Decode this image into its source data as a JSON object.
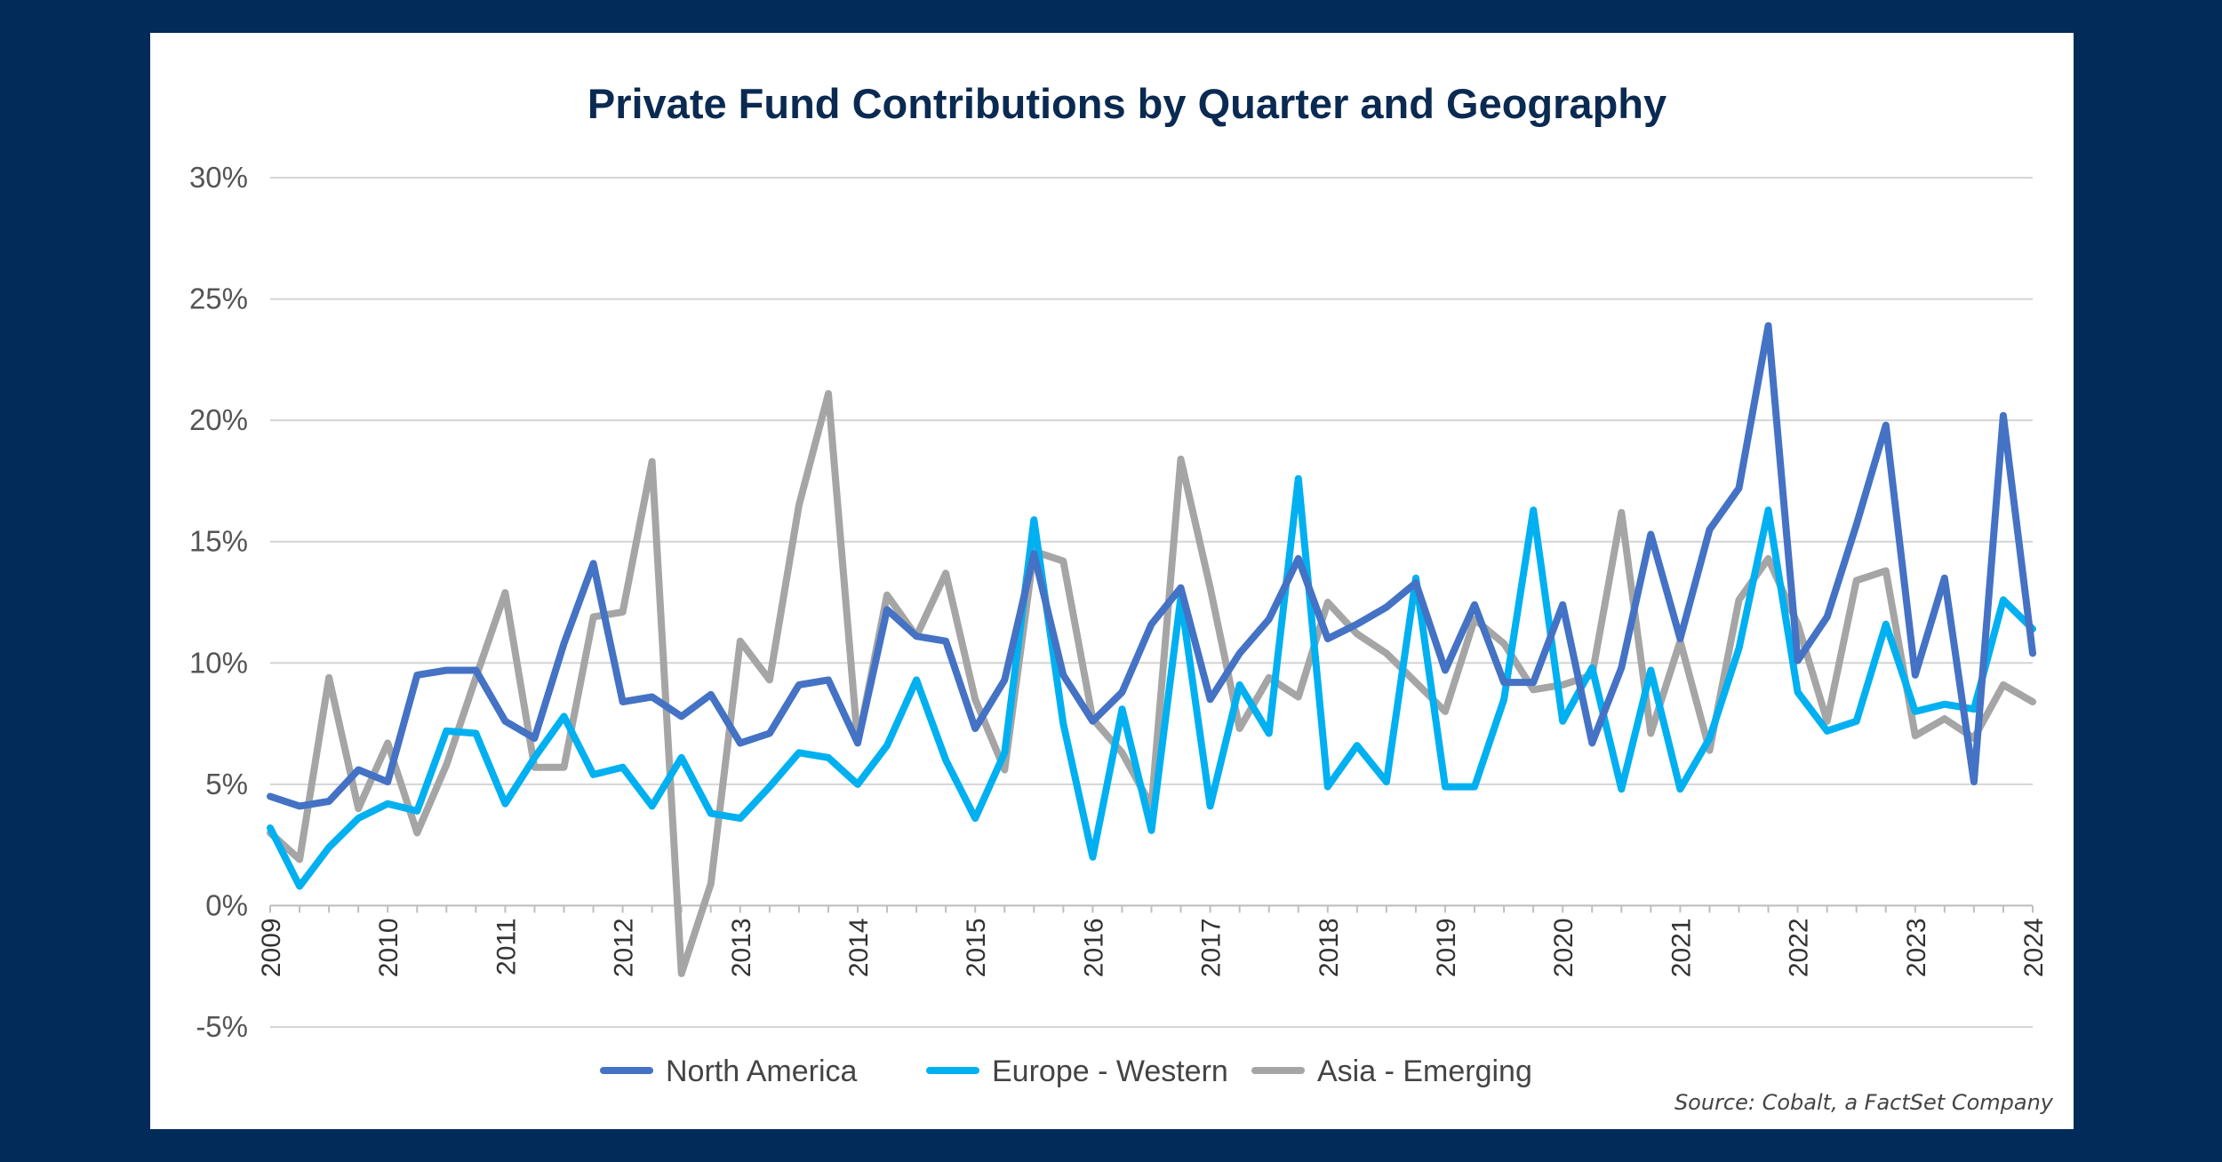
{
  "chart_data": {
    "type": "line",
    "title": "Private Fund Contributions by Quarter and Geography",
    "source": "Source: Cobalt, a FactSet Company",
    "ylim": [
      -5,
      30
    ],
    "y_ticks": [
      30,
      25,
      20,
      15,
      10,
      5,
      0,
      -5
    ],
    "y_tick_labels": [
      "30%",
      "25%",
      "20%",
      "15%",
      "10%",
      "5%",
      "0%",
      "-5%"
    ],
    "x_tick_labels": [
      "2009",
      "2010",
      "2011",
      "2012",
      "2013",
      "2014",
      "2015",
      "2016",
      "2017",
      "2018",
      "2019",
      "2020",
      "2021",
      "2022",
      "2023",
      "2024"
    ],
    "quarters_per_year": 4,
    "grid": true,
    "legend_position": "bottom",
    "series": [
      {
        "name": "North America",
        "color": "#4472c4",
        "values": [
          4.5,
          4.1,
          4.3,
          5.6,
          5.1,
          9.5,
          9.7,
          9.7,
          7.6,
          6.9,
          10.8,
          14.1,
          8.4,
          8.6,
          7.8,
          8.7,
          6.7,
          7.1,
          9.1,
          9.3,
          6.7,
          12.2,
          11.1,
          10.9,
          7.3,
          9.3,
          14.5,
          9.5,
          7.6,
          8.8,
          11.6,
          13.1,
          8.5,
          10.4,
          11.8,
          14.3,
          11.0,
          11.6,
          12.3,
          13.3,
          9.7,
          12.4,
          9.2,
          9.2,
          12.4,
          6.7,
          9.8,
          15.3,
          11.0,
          15.5,
          17.2,
          23.9,
          10.1,
          11.9,
          15.7,
          19.8,
          9.5,
          13.5,
          5.1,
          20.2,
          10.4
        ]
      },
      {
        "name": "Europe - Western",
        "color": "#00b0f0",
        "values": [
          3.2,
          0.8,
          2.4,
          3.6,
          4.2,
          3.9,
          7.2,
          7.1,
          4.2,
          6.1,
          7.8,
          5.4,
          5.7,
          4.1,
          6.1,
          3.8,
          3.6,
          4.9,
          6.3,
          6.1,
          5.0,
          6.6,
          9.3,
          6.0,
          3.6,
          6.3,
          15.9,
          7.5,
          2.0,
          8.1,
          3.1,
          12.7,
          4.1,
          9.1,
          7.1,
          17.6,
          4.9,
          6.6,
          5.1,
          13.5,
          4.9,
          4.9,
          8.5,
          16.3,
          7.6,
          9.8,
          4.8,
          9.7,
          4.8,
          6.9,
          10.6,
          16.3,
          8.8,
          7.2,
          7.6,
          11.6,
          8.0,
          8.3,
          8.1,
          12.6,
          11.4
        ]
      },
      {
        "name": "Asia - Emerging",
        "color": "#a5a5a5",
        "values": [
          3.0,
          1.9,
          9.4,
          4.0,
          6.7,
          3.0,
          5.8,
          9.4,
          12.9,
          5.7,
          5.7,
          11.9,
          12.1,
          18.3,
          -2.8,
          0.9,
          10.9,
          9.3,
          16.5,
          21.1,
          6.7,
          12.8,
          11.1,
          13.7,
          8.5,
          5.6,
          14.6,
          14.2,
          7.7,
          6.3,
          4.1,
          18.4,
          13.1,
          7.3,
          9.4,
          8.6,
          12.5,
          11.2,
          10.4,
          9.2,
          8.0,
          11.8,
          10.8,
          8.9,
          9.1,
          9.5,
          16.2,
          7.1,
          10.9,
          6.4,
          12.6,
          14.3,
          11.6,
          7.6,
          13.4,
          13.8,
          7.0,
          7.7,
          6.9,
          9.1,
          8.4
        ]
      }
    ]
  }
}
